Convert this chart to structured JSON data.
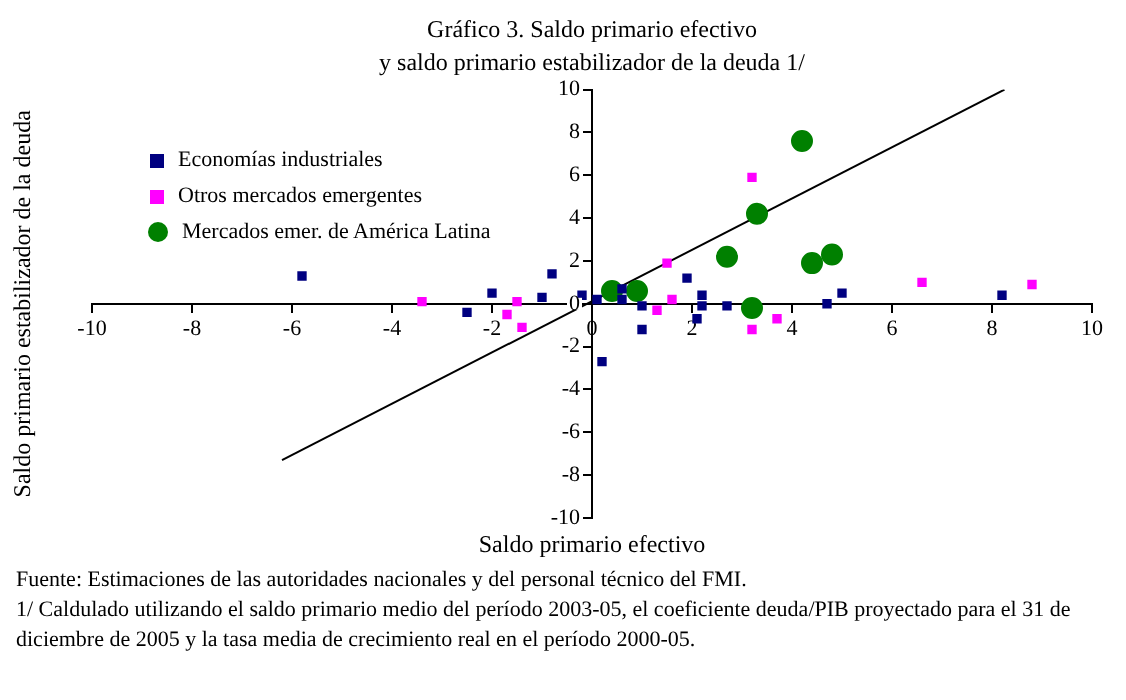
{
  "chart_data": {
    "type": "scatter",
    "title": "Gráfico 3. Saldo primario efectivo",
    "subtitle": "y saldo primario estabilizador de la deuda 1/",
    "xlabel": "Saldo primario efectivo",
    "ylabel": "Saldo primario estabilizador de la deuda",
    "xlim": [
      -10,
      10
    ],
    "xticks": [
      -10,
      -8,
      -6,
      -4,
      -2,
      0,
      2,
      4,
      6,
      8,
      10
    ],
    "ylim": [
      -10,
      10
    ],
    "yticks": [
      -10,
      -8,
      -6,
      -4,
      -2,
      0,
      2,
      4,
      6,
      8,
      10
    ],
    "grid": false,
    "legend": "top left",
    "series": [
      {
        "name": "Economías industriales",
        "color": "#000080",
        "marker": "square",
        "x": [
          -5.8,
          -2.5,
          -2.0,
          -0.8,
          -1.0,
          -0.2,
          0.1,
          0.2,
          0.6,
          0.6,
          1.0,
          1.0,
          1.9,
          2.2,
          2.2,
          2.1,
          2.7,
          4.7,
          5.0,
          8.2
        ],
        "values": [
          1.3,
          -0.4,
          0.5,
          1.4,
          0.3,
          0.4,
          0.2,
          -2.7,
          0.2,
          0.7,
          -1.2,
          -0.1,
          1.2,
          0.4,
          -0.1,
          -0.7,
          -0.1,
          0.0,
          0.5,
          0.4
        ]
      },
      {
        "name": "Otros mercados emergentes",
        "color": "#ff00ff",
        "marker": "square",
        "x": [
          -3.4,
          -1.7,
          -1.5,
          -1.4,
          1.5,
          1.3,
          1.6,
          3.2,
          3.2,
          3.7,
          6.6,
          8.8
        ],
        "values": [
          0.1,
          -0.5,
          0.1,
          -1.1,
          1.9,
          -0.3,
          0.2,
          5.9,
          -1.2,
          -0.7,
          1.0,
          0.9
        ]
      },
      {
        "name": "Mercados emer. de América Latina",
        "color": "#008000",
        "marker": "circle",
        "x": [
          0.4,
          0.9,
          2.7,
          3.2,
          3.3,
          4.2,
          4.4,
          4.8
        ],
        "values": [
          0.6,
          0.6,
          2.2,
          -0.2,
          4.2,
          7.6,
          1.9,
          2.3
        ]
      },
      {
        "type": "line",
        "color": "#000000",
        "marker": "none",
        "x": [
          -6.2,
          8.25
        ],
        "values": [
          -7.3,
          10
        ]
      }
    ],
    "annotations": [
      "Fuente: Estimaciones de las autoridades nacionales y del personal técnico del FMI.",
      "1/ Caldulado utilizando el saldo primario medio del período 2003-05, el coeficiente deuda/PIB proyectado para el 31 de diciembre de 2005 y la tasa media de crecimiento real en el período 2000-05."
    ]
  }
}
